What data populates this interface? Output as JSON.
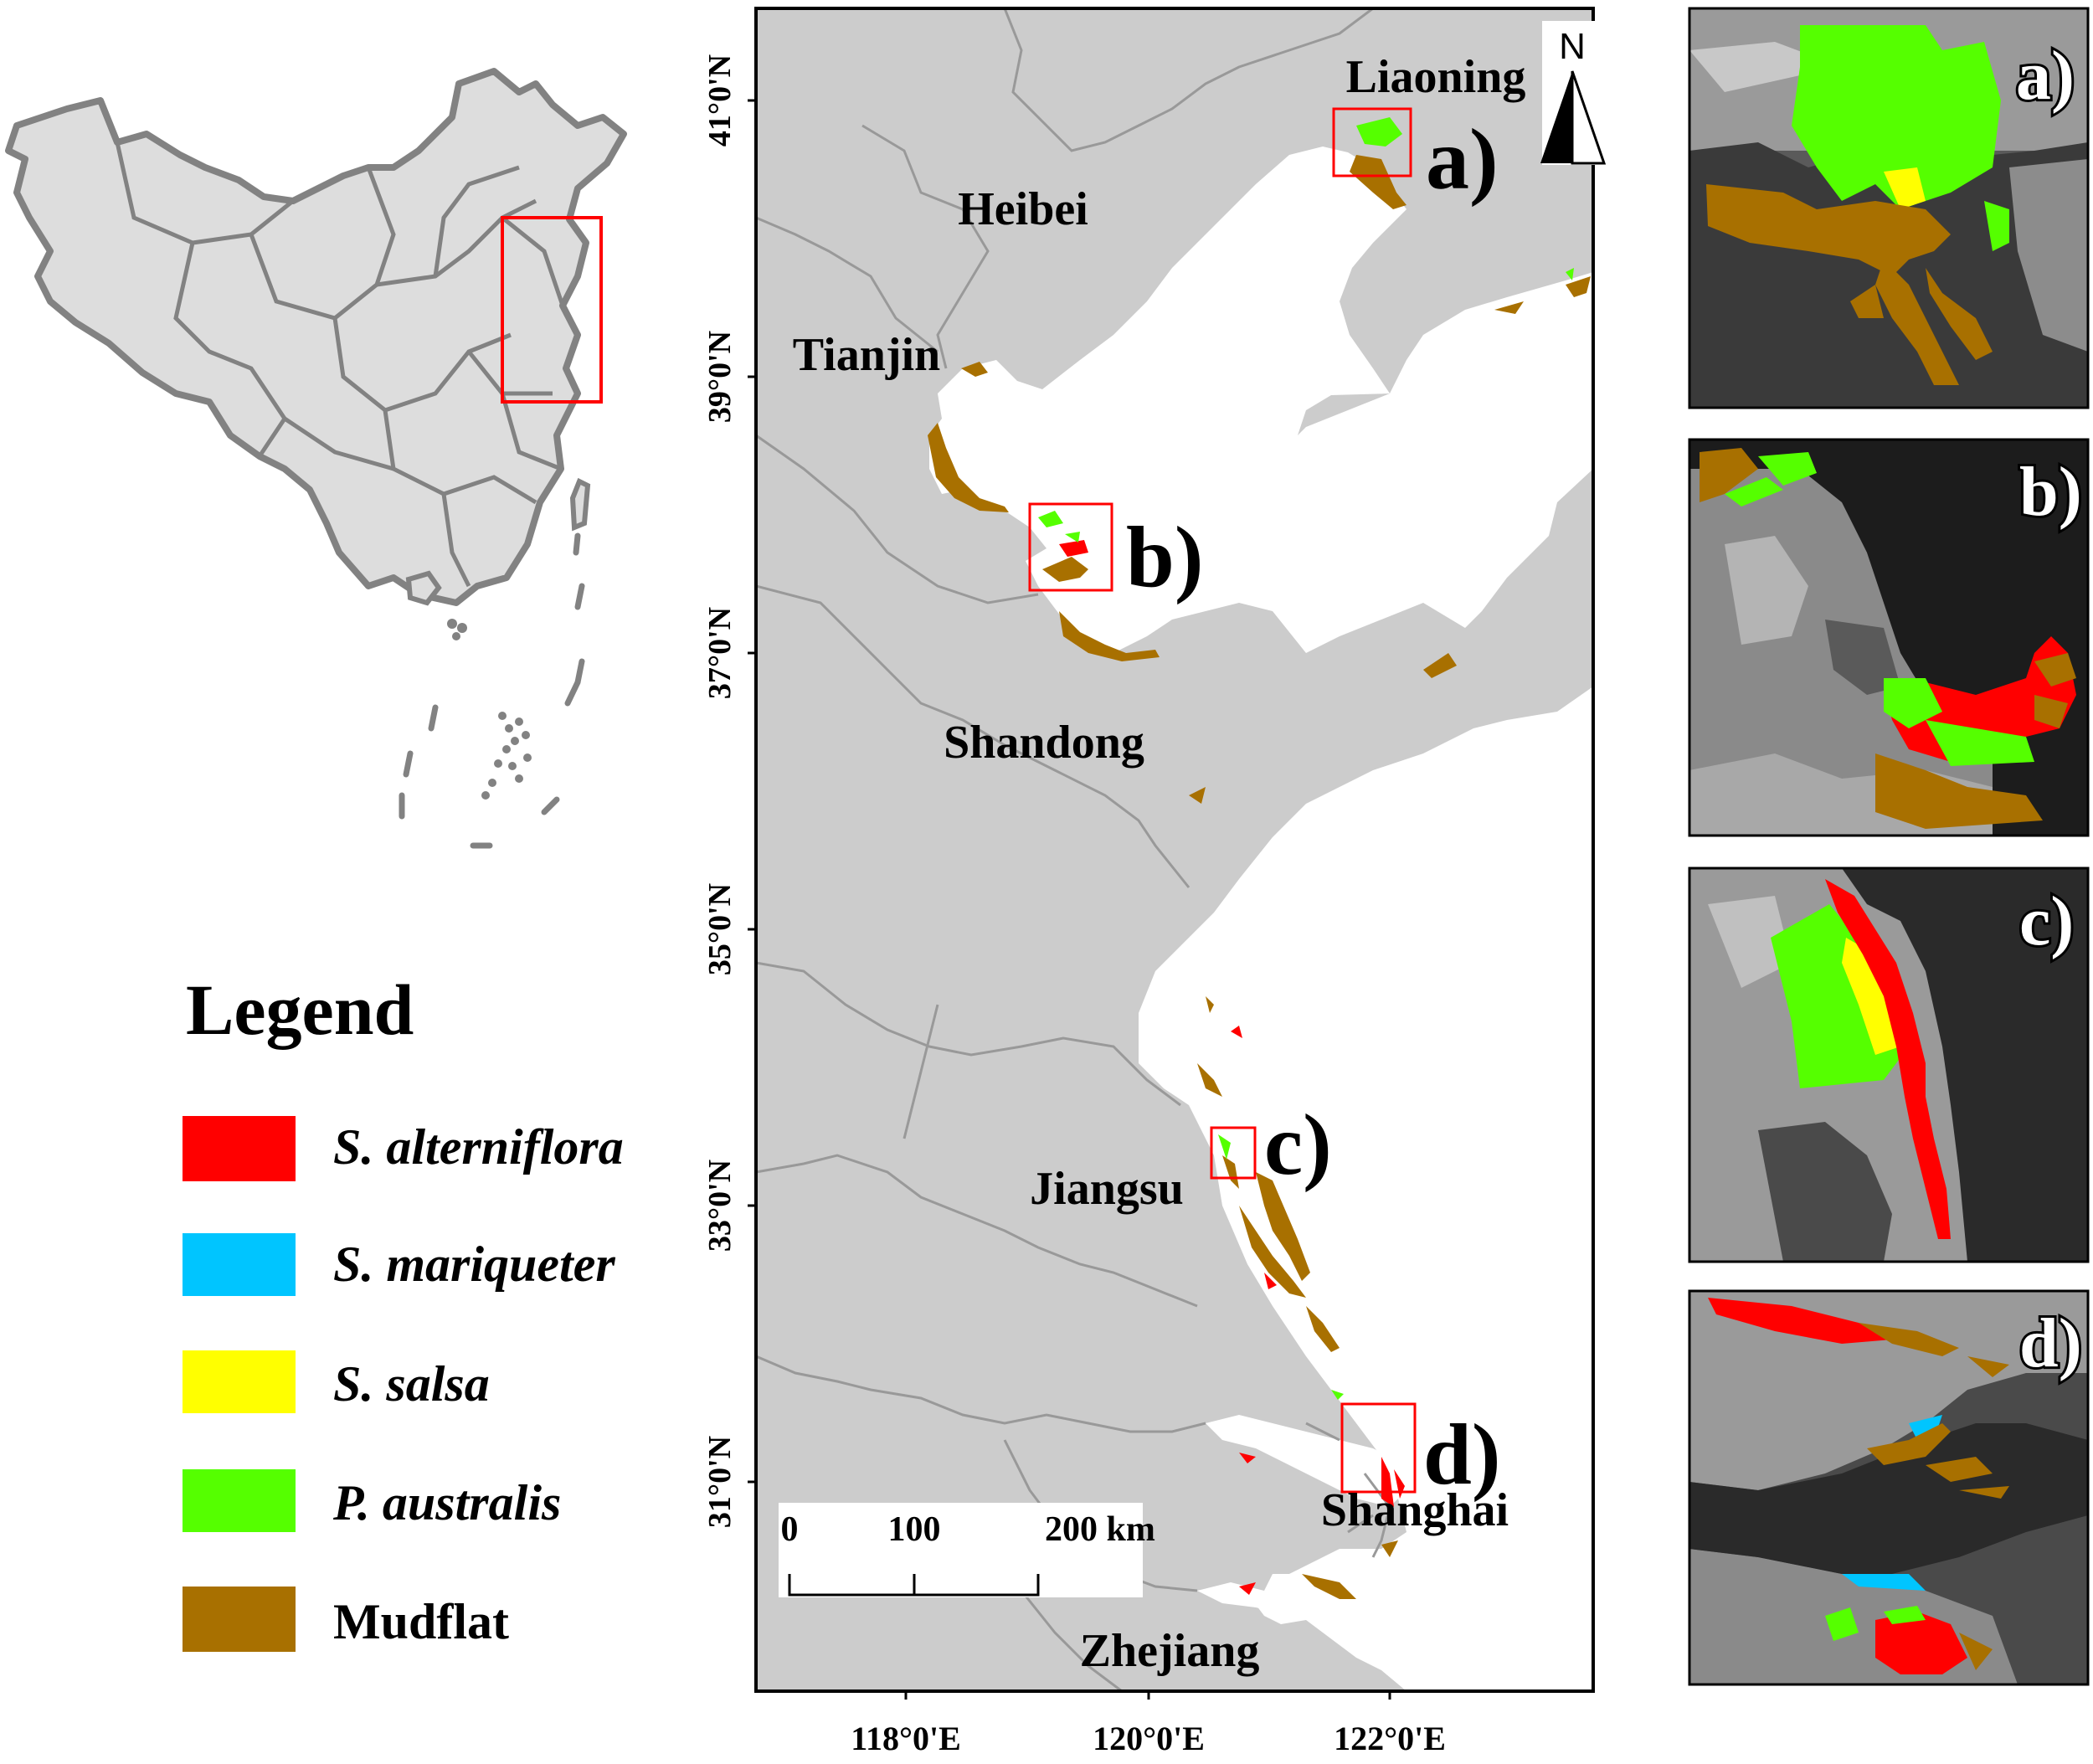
{
  "main_map": {
    "lat_ticks": [
      "41°0'N",
      "39°0'N",
      "37°0'N",
      "35°0'N",
      "33°0'N",
      "31°0'N"
    ],
    "lon_ticks": [
      "118°0'E",
      "120°0'E",
      "122°0'E"
    ],
    "provinces": [
      "Liaoning",
      "Heibei",
      "Tianjin",
      "Shandong",
      "Jiangsu",
      "Shanghai",
      "Zhejiang"
    ],
    "site_labels": [
      "a)",
      "b)",
      "c)",
      "d)"
    ],
    "north_arrow": "N",
    "scale_bar": {
      "ticks": [
        "0",
        "100",
        "200 km"
      ]
    }
  },
  "legend": {
    "title": "Legend",
    "items": [
      {
        "label": "S. alterniflora",
        "color": "#ff0000",
        "italic": true
      },
      {
        "label": "S. mariqueter",
        "color": "#00c5ff",
        "italic": true
      },
      {
        "label": "S. salsa",
        "color": "#ffff00",
        "italic": true
      },
      {
        "label": "P. australis",
        "color": "#55ff00",
        "italic": true
      },
      {
        "label": "Mudflat",
        "color": "#a87000",
        "italic": false
      }
    ]
  },
  "panels": [
    "a)",
    "b)",
    "c)",
    "d)"
  ],
  "colors": {
    "land": "#cccccc",
    "boundary": "#999999",
    "inset_outline": "#828282",
    "highlight_box": "#ff0000"
  }
}
